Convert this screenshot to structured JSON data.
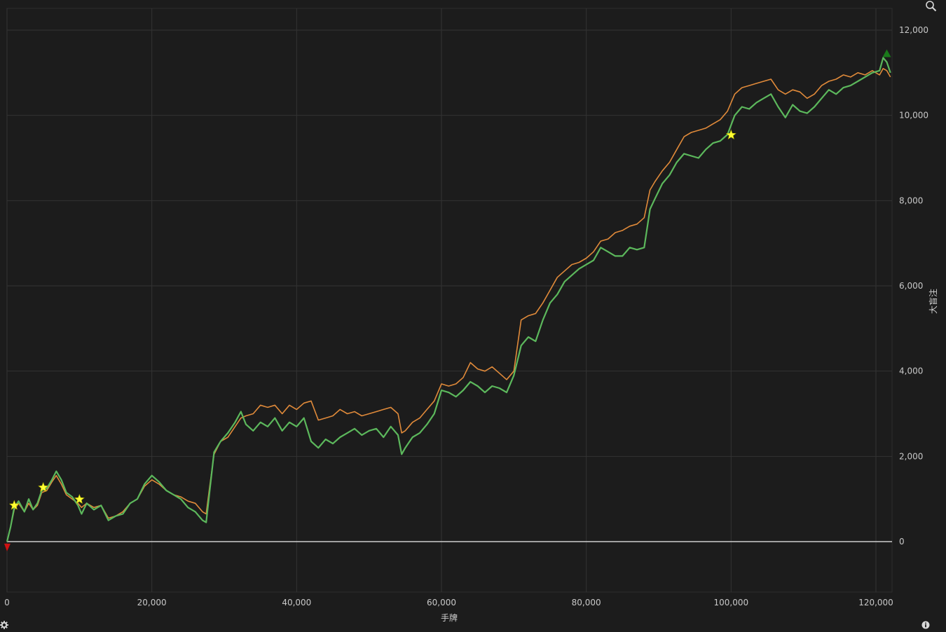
{
  "chart_data": {
    "type": "line",
    "xlabel": "手牌",
    "ylabel": "大盲注",
    "xlim": [
      0,
      122000
    ],
    "ylim": [
      -1200,
      12500
    ],
    "x_ticks": [
      0,
      20000,
      40000,
      60000,
      80000,
      100000,
      120000
    ],
    "x_tick_labels": [
      "0",
      "20,000",
      "40,000",
      "60,000",
      "80,000",
      "100,000",
      "120,000"
    ],
    "y_ticks": [
      0,
      2000,
      4000,
      6000,
      8000,
      10000,
      12000
    ],
    "y_tick_labels": [
      "0",
      "2,000",
      "4,000",
      "6,000",
      "8,000",
      "10,000",
      "12,000"
    ],
    "grid": true,
    "colors": {
      "background": "#1c1c1c",
      "grid": "#333333",
      "zero_line": "#cfcfcf",
      "green_series": "#5cb85c",
      "orange_series": "#e08a3a",
      "star": "#ffff33",
      "max_marker": "#1a7a1a",
      "min_marker": "#cc1111"
    },
    "series": [
      {
        "key": "green",
        "color": "#5cb85c",
        "x": [
          0,
          500,
          1000,
          1600,
          2400,
          3000,
          3600,
          4200,
          4800,
          5500,
          6200,
          6800,
          7500,
          8200,
          9000,
          9800,
          10300,
          11000,
          12000,
          13000,
          14000,
          15000,
          16000,
          17000,
          18000,
          19000,
          20000,
          21000,
          22000,
          23000,
          24000,
          25000,
          26000,
          27000,
          27500,
          28000,
          28600,
          29500,
          30500,
          31500,
          32300,
          33000,
          34000,
          35000,
          36000,
          37000,
          38000,
          39000,
          40000,
          41000,
          42000,
          43000,
          44000,
          45000,
          46000,
          47000,
          48000,
          49000,
          50000,
          51000,
          52000,
          53000,
          54000,
          54500,
          55000,
          56000,
          57000,
          58000,
          59000,
          60000,
          61000,
          62000,
          63000,
          64000,
          65000,
          66000,
          67000,
          68000,
          69000,
          70000,
          71000,
          72000,
          73000,
          74000,
          75000,
          76000,
          77000,
          78000,
          79000,
          80000,
          81000,
          82000,
          83000,
          84000,
          85000,
          86000,
          87000,
          88000,
          88800,
          89500,
          90500,
          91500,
          92500,
          93500,
          94500,
          95500,
          96500,
          97500,
          98500,
          99500,
          100500,
          101500,
          102500,
          103500,
          104500,
          105500,
          106500,
          107500,
          108500,
          109500,
          110500,
          111500,
          112500,
          113500,
          114500,
          115500,
          116500,
          117500,
          118500,
          119500,
          120500,
          121000,
          121500,
          122000
        ],
        "y": [
          0,
          350,
          800,
          950,
          700,
          1000,
          750,
          900,
          1200,
          1250,
          1450,
          1650,
          1450,
          1150,
          1050,
          850,
          650,
          900,
          750,
          850,
          500,
          600,
          650,
          900,
          1000,
          1350,
          1550,
          1400,
          1200,
          1100,
          1000,
          800,
          700,
          500,
          450,
          1200,
          2100,
          2350,
          2550,
          2800,
          3050,
          2750,
          2600,
          2800,
          2700,
          2900,
          2600,
          2800,
          2700,
          2900,
          2350,
          2200,
          2400,
          2300,
          2450,
          2550,
          2650,
          2500,
          2600,
          2650,
          2450,
          2700,
          2500,
          2050,
          2200,
          2450,
          2550,
          2750,
          3000,
          3550,
          3500,
          3400,
          3550,
          3750,
          3650,
          3500,
          3650,
          3600,
          3500,
          3900,
          4600,
          4800,
          4700,
          5200,
          5600,
          5800,
          6100,
          6250,
          6400,
          6500,
          6600,
          6900,
          6800,
          6700,
          6700,
          6900,
          6850,
          6900,
          7800,
          8050,
          8400,
          8600,
          8900,
          9100,
          9050,
          9000,
          9200,
          9350,
          9400,
          9550,
          10000,
          10200,
          10150,
          10300,
          10400,
          10500,
          10200,
          9950,
          10250,
          10100,
          10050,
          10200,
          10400,
          10600,
          10500,
          10650,
          10700,
          10800,
          10900,
          11000,
          11050,
          11350,
          11250,
          11000
        ],
        "name": ""
      },
      {
        "key": "orange",
        "color": "#e08a3a",
        "x": [
          0,
          500,
          1000,
          1600,
          2400,
          3000,
          3600,
          4200,
          4800,
          5500,
          6200,
          6800,
          7500,
          8200,
          9000,
          9800,
          10300,
          11000,
          12000,
          13000,
          14000,
          15000,
          16000,
          17000,
          18000,
          19000,
          20000,
          21000,
          22000,
          23000,
          24000,
          25000,
          26000,
          27000,
          27500,
          28000,
          28600,
          29500,
          30500,
          31500,
          32300,
          33000,
          34000,
          35000,
          36000,
          37000,
          38000,
          39000,
          40000,
          41000,
          42000,
          43000,
          44000,
          45000,
          46000,
          47000,
          48000,
          49000,
          50000,
          51000,
          52000,
          53000,
          54000,
          54500,
          55000,
          56000,
          57000,
          58000,
          59000,
          60000,
          61000,
          62000,
          63000,
          64000,
          65000,
          66000,
          67000,
          68000,
          69000,
          70000,
          71000,
          72000,
          73000,
          74000,
          75000,
          76000,
          77000,
          78000,
          79000,
          80000,
          81000,
          82000,
          83000,
          84000,
          85000,
          86000,
          87000,
          88000,
          88800,
          89500,
          90500,
          91500,
          92500,
          93500,
          94500,
          95500,
          96500,
          97500,
          98500,
          99500,
          100500,
          101500,
          102500,
          103500,
          104500,
          105500,
          106500,
          107500,
          108500,
          109500,
          110500,
          111500,
          112500,
          113500,
          114500,
          115500,
          116500,
          117500,
          118500,
          119500,
          120500,
          121000,
          121500,
          122000
        ],
        "y": [
          0,
          350,
          750,
          900,
          700,
          900,
          750,
          850,
          1150,
          1200,
          1400,
          1550,
          1350,
          1100,
          1000,
          900,
          800,
          900,
          800,
          850,
          550,
          600,
          700,
          900,
          1000,
          1300,
          1450,
          1350,
          1200,
          1100,
          1050,
          950,
          900,
          700,
          650,
          1300,
          2050,
          2350,
          2450,
          2700,
          2900,
          2950,
          3000,
          3200,
          3150,
          3200,
          3000,
          3200,
          3100,
          3250,
          3300,
          2850,
          2900,
          2950,
          3100,
          3000,
          3050,
          2950,
          3000,
          3050,
          3100,
          3150,
          3000,
          2550,
          2600,
          2800,
          2900,
          3100,
          3300,
          3700,
          3650,
          3700,
          3850,
          4200,
          4050,
          4000,
          4100,
          3950,
          3800,
          4000,
          5200,
          5300,
          5350,
          5600,
          5900,
          6200,
          6350,
          6500,
          6550,
          6650,
          6800,
          7050,
          7100,
          7250,
          7300,
          7400,
          7450,
          7600,
          8250,
          8450,
          8700,
          8900,
          9200,
          9500,
          9600,
          9650,
          9700,
          9800,
          9900,
          10100,
          10500,
          10650,
          10700,
          10750,
          10800,
          10850,
          10600,
          10500,
          10600,
          10550,
          10400,
          10500,
          10700,
          10800,
          10850,
          10950,
          10900,
          11000,
          10950,
          11050,
          10950,
          11100,
          11050,
          10900
        ],
        "name": ""
      }
    ],
    "star_markers": [
      {
        "x": 1000,
        "y": 850
      },
      {
        "x": 5000,
        "y": 1270
      },
      {
        "x": 10000,
        "y": 990
      },
      {
        "x": 100000,
        "y": 9540
      }
    ],
    "max_marker": {
      "x": 121500,
      "y": 11450
    },
    "min_marker": {
      "x": 0,
      "y": -130
    }
  },
  "controls": {
    "zoom_icon": "magnifier-icon",
    "settings_icon": "gear-icon",
    "info_icon": "info-icon"
  }
}
